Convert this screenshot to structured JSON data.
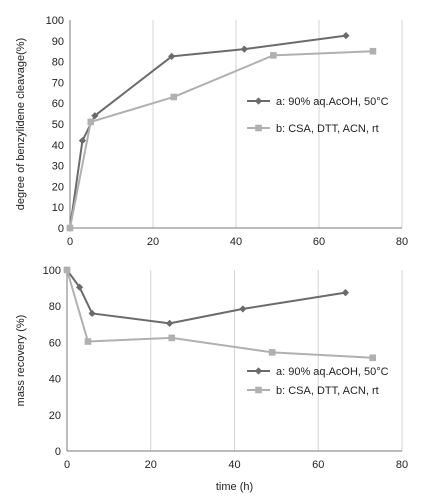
{
  "chart_data": [
    {
      "type": "line",
      "xlabel": "",
      "ylabel": "degree of benzylidene cleavage(%)",
      "xlim": [
        0,
        80
      ],
      "ylim": [
        0,
        100
      ],
      "xticks": [
        0,
        20,
        40,
        60,
        80
      ],
      "yticks": [
        0,
        10,
        20,
        30,
        40,
        50,
        60,
        70,
        80,
        90,
        100
      ],
      "grid": "vertical",
      "legend_position": "right",
      "series": [
        {
          "name": "a: 90% aq.AcOH, 50°C",
          "marker": "diamond",
          "color": "#6b6b6b",
          "x": [
            0,
            3,
            6,
            24.5,
            42,
            66.5
          ],
          "y": [
            0,
            42,
            54,
            82.5,
            86,
            92.5
          ]
        },
        {
          "name": "b: CSA, DTT, ACN, rt",
          "marker": "square",
          "color": "#b0b0b0",
          "x": [
            0,
            5,
            25,
            49,
            73
          ],
          "y": [
            0,
            51,
            63,
            83,
            85
          ]
        }
      ]
    },
    {
      "type": "line",
      "xlabel": "time (h)",
      "ylabel": "mass recovery (%)",
      "xlim": [
        0,
        80
      ],
      "ylim": [
        0,
        100
      ],
      "xticks": [
        0,
        20,
        40,
        60,
        80
      ],
      "yticks": [
        0,
        20,
        40,
        60,
        80,
        100
      ],
      "grid": "vertical",
      "legend_position": "right",
      "series": [
        {
          "name": "a: 90% aq.AcOH, 50°C",
          "marker": "diamond",
          "color": "#6b6b6b",
          "x": [
            0,
            3,
            6,
            24.5,
            42,
            66.5
          ],
          "y": [
            100,
            90.5,
            76,
            70.5,
            78.5,
            87.5
          ]
        },
        {
          "name": "b: CSA, DTT, ACN, rt",
          "marker": "square",
          "color": "#b0b0b0",
          "x": [
            0,
            5,
            25,
            49,
            73
          ],
          "y": [
            100,
            60.5,
            62.5,
            54.5,
            51.5
          ]
        }
      ]
    }
  ]
}
